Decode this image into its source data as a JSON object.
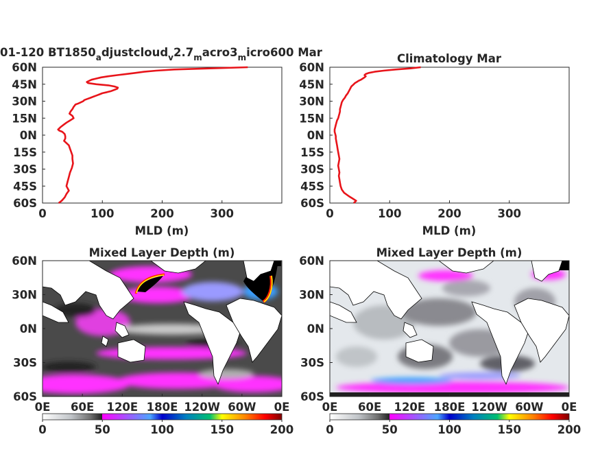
{
  "chart_data": [
    {
      "type": "line",
      "title_parts": [
        "01-120 BT1850",
        "a",
        "djustcloud",
        "v",
        "2.7",
        "m",
        "acro3",
        "m",
        "icro600 Mar"
      ],
      "xlabel": "MLD (m)",
      "ylabel": "",
      "xlim": [
        0,
        400
      ],
      "ylim": [
        -60,
        60
      ],
      "x_ticks": [
        "0",
        "100",
        "200",
        "300"
      ],
      "y_ticks": [
        "60N",
        "45N",
        "30N",
        "15N",
        "0N",
        "15S",
        "30S",
        "45S",
        "60S"
      ],
      "line_color": "#e8141a",
      "series": [
        {
          "lat": [
            60,
            59,
            58,
            57,
            56,
            55,
            54,
            53,
            52,
            51,
            50,
            49,
            48,
            47,
            46,
            45,
            44,
            43,
            42,
            41,
            40,
            39,
            38,
            37,
            36,
            35,
            34,
            33,
            32,
            31,
            30,
            29,
            28,
            27,
            25,
            23,
            21,
            19,
            17,
            15,
            13,
            11,
            9,
            7,
            5,
            4,
            3,
            1,
            -1,
            -3,
            -5,
            -7,
            -9,
            -12,
            -15,
            -18,
            -21,
            -25,
            -29,
            -33,
            -37,
            -41,
            -45,
            -49,
            -52,
            -55,
            -58,
            -60
          ],
          "mld": [
            343,
            280,
            220,
            190,
            170,
            155,
            140,
            125,
            110,
            98,
            90,
            82,
            78,
            74,
            76,
            90,
            110,
            120,
            126,
            125,
            120,
            115,
            108,
            100,
            95,
            90,
            85,
            80,
            75,
            70,
            68,
            64,
            60,
            55,
            52,
            50,
            47,
            45,
            50,
            52,
            46,
            40,
            35,
            30,
            26,
            28,
            33,
            37,
            38,
            38,
            36,
            40,
            44,
            46,
            48,
            50,
            50,
            51,
            49,
            46,
            44,
            42,
            40,
            44,
            40,
            37,
            32,
            27
          ]
        }
      ]
    },
    {
      "type": "line",
      "title": "Climatology Mar",
      "xlabel": "MLD (m)",
      "ylabel": "",
      "xlim": [
        0,
        400
      ],
      "ylim": [
        -60,
        60
      ],
      "x_ticks": [
        "0",
        "100",
        "200",
        "300"
      ],
      "y_ticks": [
        "60N",
        "45N",
        "30N",
        "15N",
        "0N",
        "15S",
        "30S",
        "45S",
        "60S"
      ],
      "line_color": "#e8141a",
      "series": [
        {
          "lat": [
            60,
            59,
            58,
            57,
            56,
            55,
            54,
            53,
            52,
            51,
            50,
            49,
            48,
            47,
            46,
            45,
            44,
            43,
            41,
            39,
            37,
            35,
            33,
            31,
            29,
            27,
            25,
            23,
            21,
            19,
            17,
            15,
            13,
            11,
            9,
            7,
            5,
            3,
            1,
            -1,
            -3,
            -6,
            -9,
            -12,
            -15,
            -18,
            -21,
            -24,
            -27,
            -30,
            -33,
            -36,
            -39,
            -42,
            -45,
            -48,
            -51,
            -54,
            -56,
            -58,
            -60
          ],
          "mld": [
            152,
            135,
            110,
            90,
            75,
            65,
            60,
            58,
            60,
            58,
            55,
            52,
            48,
            45,
            42,
            40,
            38,
            36,
            34,
            32,
            30,
            27,
            25,
            22,
            20,
            19,
            18,
            17,
            17,
            16,
            15,
            14,
            12,
            11,
            10,
            9,
            8,
            8,
            9,
            10,
            10,
            11,
            12,
            13,
            14,
            15,
            16,
            15,
            14,
            15,
            16,
            15,
            16,
            17,
            18,
            20,
            24,
            32,
            38,
            44,
            40
          ]
        }
      ]
    },
    {
      "type": "heatmap",
      "title": "Mixed Layer Depth (m)",
      "x_ticks": [
        "0E",
        "60E",
        "120E",
        "180E",
        "120W",
        "60W",
        "0E"
      ],
      "y_ticks": [
        "60N",
        "30N",
        "0N",
        "30S",
        "60S"
      ],
      "colorbar_ticks": [
        "0",
        "50",
        "100",
        "150",
        "200"
      ],
      "clim": [
        0,
        200
      ],
      "colormap": [
        "#ffffff",
        "#c0c4c8",
        "#606060",
        "#202020",
        "#ff00ff",
        "#ff66ff",
        "#3a9fff",
        "#0000cc",
        "#00c8c0",
        "#00c070",
        "#ffff00",
        "#ff8000",
        "#ff0000",
        "#800000"
      ]
    },
    {
      "type": "heatmap",
      "title": "Mixed Layer Depth (m)",
      "x_ticks": [
        "0E",
        "60E",
        "120E",
        "180E",
        "120W",
        "60W",
        "0E"
      ],
      "y_ticks": [
        "60N",
        "30N",
        "0N",
        "30S",
        "60S"
      ],
      "colorbar_ticks": [
        "0",
        "50",
        "100",
        "150",
        "200"
      ],
      "clim": [
        0,
        200
      ],
      "colormap": [
        "#ffffff",
        "#c0c4c8",
        "#606060",
        "#202020",
        "#ff00ff",
        "#ff66ff",
        "#3a9fff",
        "#0000cc",
        "#00c8c0",
        "#00c070",
        "#ffff00",
        "#ff8000",
        "#ff0000",
        "#800000"
      ]
    }
  ]
}
